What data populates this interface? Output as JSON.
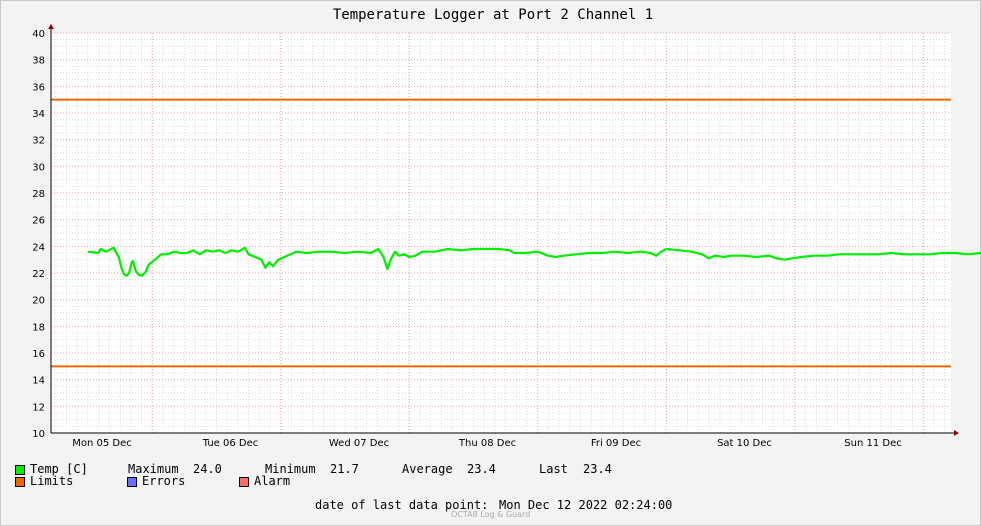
{
  "chart_data": {
    "type": "line",
    "title": "Temperature Logger at Port 2 Channel 1",
    "ylim": [
      10,
      40
    ],
    "y_ticks": [
      10,
      12,
      14,
      16,
      18,
      20,
      22,
      24,
      26,
      28,
      30,
      32,
      34,
      36,
      38,
      40
    ],
    "x_tick_labels": [
      "Mon 05 Dec",
      "Tue 06 Dec",
      "Wed 07 Dec",
      "Thu 08 Dec",
      "Fri 09 Dec",
      "Sat 10 Dec",
      "Sun 11 Dec"
    ],
    "x_range_days": [
      0,
      7.1
    ],
    "grid": true,
    "series": [
      {
        "name": "Temp [C]",
        "color": "#00ee00",
        "points": [
          [
            0.0,
            23.6
          ],
          [
            0.08,
            23.5
          ],
          [
            0.1,
            23.8
          ],
          [
            0.14,
            23.6
          ],
          [
            0.18,
            23.8
          ],
          [
            0.2,
            23.9
          ],
          [
            0.22,
            23.5
          ],
          [
            0.24,
            23.2
          ],
          [
            0.26,
            22.4
          ],
          [
            0.28,
            21.9
          ],
          [
            0.3,
            21.8
          ],
          [
            0.32,
            22.0
          ],
          [
            0.34,
            22.8
          ],
          [
            0.35,
            22.9
          ],
          [
            0.37,
            22.2
          ],
          [
            0.39,
            21.9
          ],
          [
            0.42,
            21.8
          ],
          [
            0.45,
            22.1
          ],
          [
            0.47,
            22.6
          ],
          [
            0.52,
            23.0
          ],
          [
            0.57,
            23.4
          ],
          [
            0.62,
            23.4
          ],
          [
            0.67,
            23.6
          ],
          [
            0.72,
            23.5
          ],
          [
            0.77,
            23.5
          ],
          [
            0.82,
            23.7
          ],
          [
            0.87,
            23.4
          ],
          [
            0.92,
            23.7
          ],
          [
            0.97,
            23.6
          ],
          [
            1.02,
            23.7
          ],
          [
            1.07,
            23.5
          ],
          [
            1.12,
            23.7
          ],
          [
            1.17,
            23.6
          ],
          [
            1.22,
            23.9
          ],
          [
            1.25,
            23.4
          ],
          [
            1.3,
            23.2
          ],
          [
            1.35,
            23.0
          ],
          [
            1.38,
            22.4
          ],
          [
            1.41,
            22.8
          ],
          [
            1.44,
            22.5
          ],
          [
            1.48,
            23.0
          ],
          [
            1.55,
            23.3
          ],
          [
            1.62,
            23.6
          ],
          [
            1.7,
            23.5
          ],
          [
            1.8,
            23.6
          ],
          [
            1.9,
            23.6
          ],
          [
            2.0,
            23.5
          ],
          [
            2.1,
            23.6
          ],
          [
            2.2,
            23.5
          ],
          [
            2.26,
            23.8
          ],
          [
            2.3,
            23.2
          ],
          [
            2.33,
            22.3
          ],
          [
            2.36,
            23.1
          ],
          [
            2.39,
            23.6
          ],
          [
            2.42,
            23.3
          ],
          [
            2.46,
            23.4
          ],
          [
            2.5,
            23.2
          ],
          [
            2.55,
            23.3
          ],
          [
            2.6,
            23.6
          ],
          [
            2.7,
            23.6
          ],
          [
            2.8,
            23.8
          ],
          [
            2.9,
            23.7
          ],
          [
            3.0,
            23.8
          ],
          [
            3.1,
            23.8
          ],
          [
            3.2,
            23.8
          ],
          [
            3.28,
            23.7
          ],
          [
            3.32,
            23.5
          ],
          [
            3.4,
            23.5
          ],
          [
            3.5,
            23.6
          ],
          [
            3.58,
            23.3
          ],
          [
            3.64,
            23.2
          ],
          [
            3.7,
            23.3
          ],
          [
            3.8,
            23.4
          ],
          [
            3.9,
            23.5
          ],
          [
            4.0,
            23.5
          ],
          [
            4.1,
            23.6
          ],
          [
            4.2,
            23.5
          ],
          [
            4.3,
            23.6
          ],
          [
            4.38,
            23.5
          ],
          [
            4.42,
            23.3
          ],
          [
            4.46,
            23.6
          ],
          [
            4.5,
            23.8
          ],
          [
            4.6,
            23.7
          ],
          [
            4.7,
            23.6
          ],
          [
            4.78,
            23.4
          ],
          [
            4.83,
            23.1
          ],
          [
            4.88,
            23.3
          ],
          [
            4.95,
            23.2
          ],
          [
            5.0,
            23.3
          ],
          [
            5.1,
            23.3
          ],
          [
            5.2,
            23.2
          ],
          [
            5.3,
            23.3
          ],
          [
            5.36,
            23.1
          ],
          [
            5.42,
            23.0
          ],
          [
            5.48,
            23.1
          ],
          [
            5.55,
            23.2
          ],
          [
            5.65,
            23.3
          ],
          [
            5.75,
            23.3
          ],
          [
            5.85,
            23.4
          ],
          [
            5.95,
            23.4
          ],
          [
            6.05,
            23.4
          ],
          [
            6.15,
            23.4
          ],
          [
            6.25,
            23.5
          ],
          [
            6.35,
            23.4
          ],
          [
            6.45,
            23.4
          ],
          [
            6.55,
            23.4
          ],
          [
            6.65,
            23.5
          ],
          [
            6.75,
            23.5
          ],
          [
            6.85,
            23.4
          ],
          [
            6.95,
            23.5
          ],
          [
            7.05,
            23.5
          ]
        ]
      }
    ],
    "limits": [
      {
        "name": "Limits",
        "color": "#ee6600",
        "values": [
          35,
          15
        ]
      }
    ]
  },
  "legend": {
    "temp_label": "Temp [C]",
    "temp_color": "#00ee00",
    "limits_label": "Limits",
    "limits_color": "#ee6600",
    "errors_label": "Errors",
    "errors_color": "#6c6cff",
    "alarm_label": "Alarm",
    "alarm_color": "#ff6c6c"
  },
  "stats": {
    "max_label": "Maximum",
    "max_value": "24.0",
    "min_label": "Minimum",
    "min_value": "21.7",
    "avg_label": "Average",
    "avg_value": "23.4",
    "last_label": "Last",
    "last_value": "23.4"
  },
  "footer": {
    "last_point_label": "date of last data point:",
    "last_point_value": "Mon Dec 12 2022 02:24:00",
    "watermark": "OCTA8 Log & Guard"
  }
}
